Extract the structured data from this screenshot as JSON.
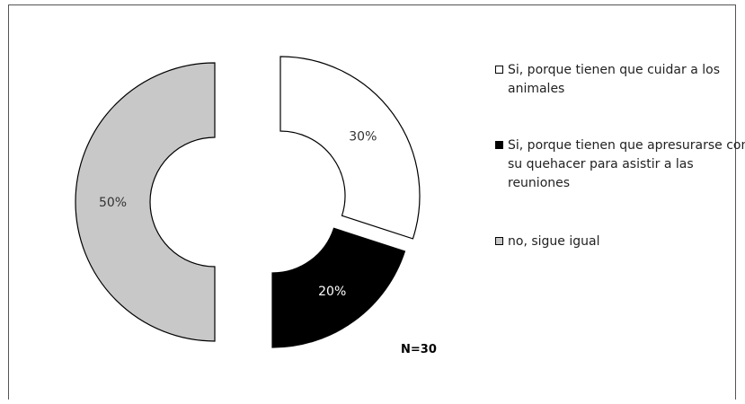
{
  "chart_data": {
    "type": "pie",
    "style": "exploded-donut",
    "categories": [
      "Si, porque tienen que cuidar a los animales",
      "Si, porque tienen que apresurarse con su quehacer para asistir  a las reuniones",
      "no, sigue igual"
    ],
    "values": [
      30,
      20,
      50
    ],
    "value_labels": [
      "30%",
      "20%",
      "50%"
    ],
    "colors": [
      "#ffffff",
      "#000000",
      "#c8c8c8"
    ],
    "label_colors": [
      "#333333",
      "#ffffff",
      "#333333"
    ],
    "annotation": "N=30",
    "legend_position": "right"
  }
}
